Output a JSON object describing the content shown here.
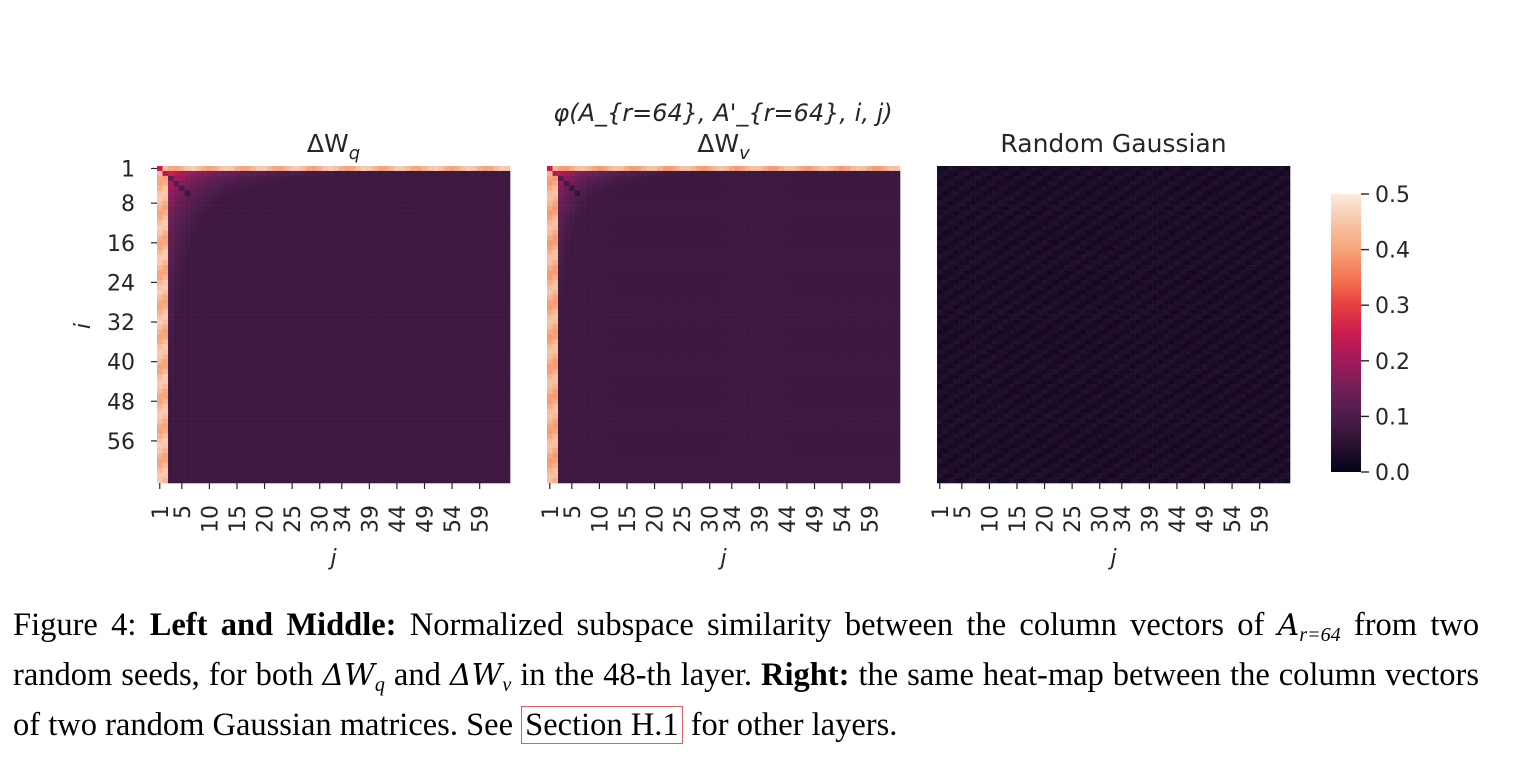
{
  "chart_data": {
    "type": "heatmap",
    "suptitle": "φ(A_{r=64}, A'_{r=64}, i, j)",
    "panels": [
      {
        "title_base": "ΔW",
        "title_sub": "q",
        "decay": 1.0,
        "xlabel": "j",
        "ylabel": "i"
      },
      {
        "title_base": "ΔW",
        "title_sub": "v",
        "decay": 0.82,
        "xlabel": "j",
        "ylabel": ""
      },
      {
        "title_base": "Random Gaussian",
        "title_sub": "",
        "decay": 0.0,
        "xlabel": "j",
        "ylabel": ""
      }
    ],
    "rows": 64,
    "cols": 64,
    "y_ticks": [
      "1",
      "8",
      "16",
      "24",
      "32",
      "40",
      "48",
      "56"
    ],
    "x_ticks": [
      "1",
      "5",
      "10",
      "15",
      "20",
      "25",
      "30",
      "34",
      "39",
      "44",
      "49",
      "54",
      "59"
    ],
    "colorbar": {
      "min": 0.0,
      "max": 0.5,
      "ticks": [
        "0.0",
        "0.1",
        "0.2",
        "0.3",
        "0.4",
        "0.5"
      ]
    },
    "colormap": [
      "#03051a",
      "#2b1130",
      "#4c1d4b",
      "#701f57",
      "#a11a5b",
      "#cb1b4f",
      "#e83f3f",
      "#f37651",
      "#f6a47c",
      "#f7c5a8",
      "#faebdd"
    ]
  },
  "caption": {
    "label": "Figure 4:",
    "bold1": "Left and Middle:",
    "text1": "Normalized subspace similarity between the column vectors of",
    "math_a": "A",
    "math_a_sub": "r=64",
    "text2": "from two random seeds, for both",
    "math_wq": "ΔW",
    "math_wq_sub": "q",
    "text3": "and",
    "math_wv": "ΔW",
    "math_wv_sub": "v",
    "text4": "in the 48-th layer.",
    "bold2": "Right:",
    "text5": "the same heat-map between the column vectors of two random Gaussian matrices. See",
    "link": "Section H.1",
    "text6": "for other layers."
  }
}
